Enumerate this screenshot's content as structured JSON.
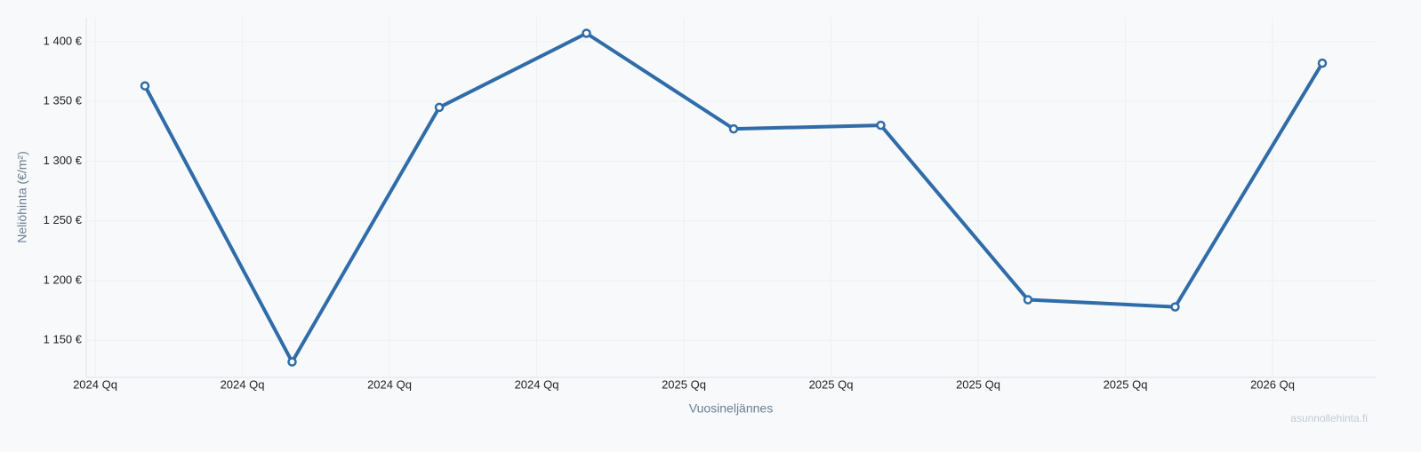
{
  "chart_data": {
    "type": "line",
    "x_label": "Vuosineljännes",
    "y_label": "Neliöhinta (€/m²)",
    "watermark": "asunnollehinta.fi",
    "categories": [
      "2024 Qq",
      "2024 Qq",
      "2024 Qq",
      "2024 Qq",
      "2025 Qq",
      "2025 Qq",
      "2025 Qq",
      "2025 Qq",
      "2026 Qq"
    ],
    "series": [
      {
        "name": "Neliöhinta",
        "color": "#2f6ca8",
        "values": [
          1363,
          1132,
          1345,
          1407,
          1327,
          1330,
          1184,
          1178,
          1382
        ]
      }
    ],
    "ylim": [
      1119,
      1420
    ],
    "yticks": [
      {
        "value": 1150,
        "label": "1 150 €"
      },
      {
        "value": 1200,
        "label": "1 200 €"
      },
      {
        "value": 1250,
        "label": "1 250 €"
      },
      {
        "value": 1300,
        "label": "1 300 €"
      },
      {
        "value": 1350,
        "label": "1 350 €"
      },
      {
        "value": 1400,
        "label": "1 400 €"
      }
    ],
    "grid": true
  }
}
